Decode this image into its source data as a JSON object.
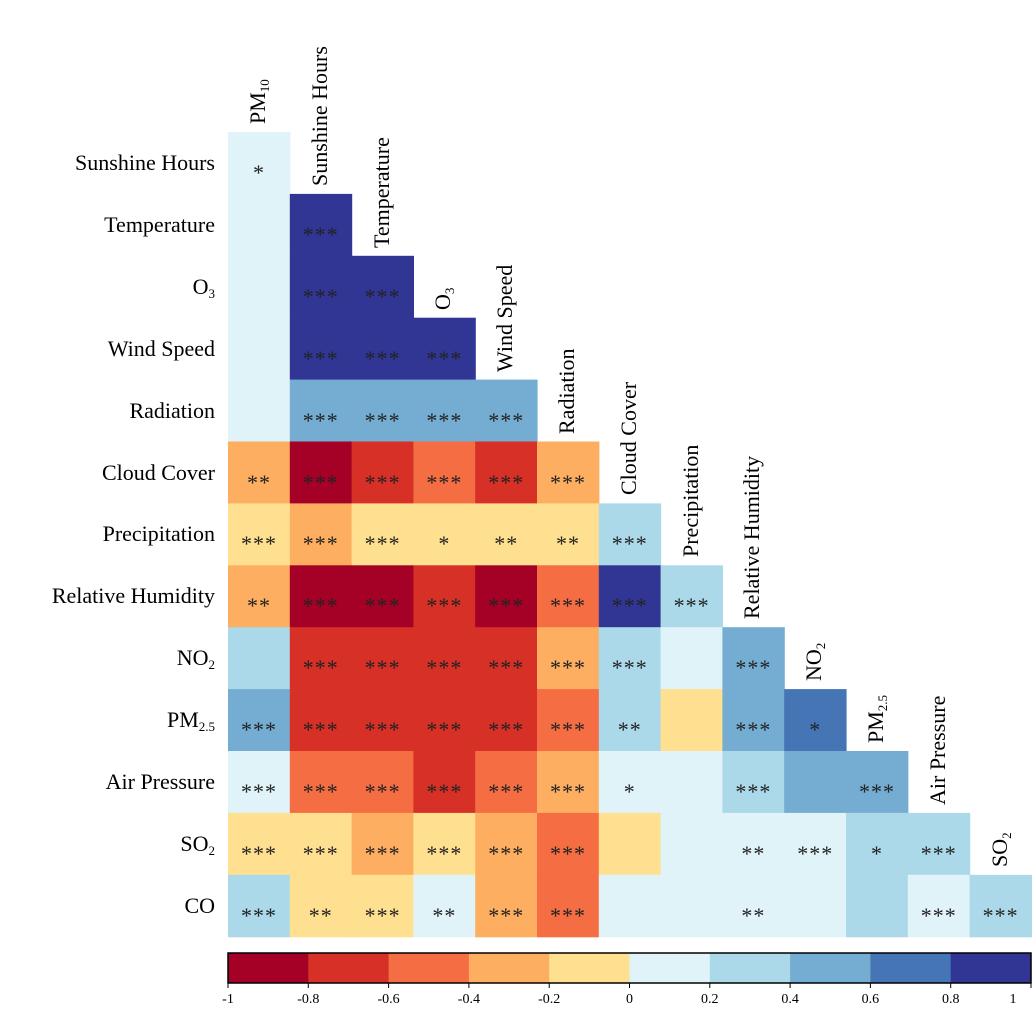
{
  "chart_data": {
    "type": "heatmap",
    "title": "",
    "rows": [
      "Sunshine Hours",
      "Temperature",
      "O3",
      "Wind Speed",
      "Radiation",
      "Cloud Cover",
      "Precipitation",
      "Relative Humidity",
      "NO2",
      "PM2.5",
      "Air Pressure",
      "SO2",
      "CO"
    ],
    "row_labels": [
      {
        "main": "Sunshine Hours",
        "sub": ""
      },
      {
        "main": "Temperature",
        "sub": ""
      },
      {
        "main": "O",
        "sub": "3"
      },
      {
        "main": "Wind Speed",
        "sub": ""
      },
      {
        "main": "Radiation",
        "sub": ""
      },
      {
        "main": "Cloud Cover",
        "sub": ""
      },
      {
        "main": "Precipitation",
        "sub": ""
      },
      {
        "main": "Relative Humidity",
        "sub": ""
      },
      {
        "main": "NO",
        "sub": "2"
      },
      {
        "main": "PM",
        "sub": "2.5"
      },
      {
        "main": "Air Pressure",
        "sub": ""
      },
      {
        "main": "SO",
        "sub": "2"
      },
      {
        "main": "CO",
        "sub": ""
      }
    ],
    "columns": [
      "PM10",
      "Sunshine Hours",
      "Temperature",
      "O3",
      "Wind Speed",
      "Radiation",
      "Cloud Cover",
      "Precipitation",
      "Relative Humidity",
      "NO2",
      "PM2.5",
      "Air Pressure",
      "SO2"
    ],
    "column_labels": [
      {
        "main": "PM",
        "sub": "10"
      },
      {
        "main": "Sunshine Hours",
        "sub": ""
      },
      {
        "main": "Temperature",
        "sub": ""
      },
      {
        "main": "O",
        "sub": "3"
      },
      {
        "main": "Wind Speed",
        "sub": ""
      },
      {
        "main": "Radiation",
        "sub": ""
      },
      {
        "main": "Cloud Cover",
        "sub": ""
      },
      {
        "main": "Precipitation",
        "sub": ""
      },
      {
        "main": "Relative Humidity",
        "sub": ""
      },
      {
        "main": "NO",
        "sub": "2"
      },
      {
        "main": "PM",
        "sub": "2.5"
      },
      {
        "main": "Air Pressure",
        "sub": ""
      },
      {
        "main": "SO",
        "sub": "2"
      }
    ],
    "values": [
      [
        0.1
      ],
      [
        0.1,
        0.9
      ],
      [
        0.1,
        0.9,
        0.9
      ],
      [
        0.1,
        0.9,
        0.9,
        0.9
      ],
      [
        0.1,
        0.5,
        0.5,
        0.5,
        0.5
      ],
      [
        -0.3,
        -0.9,
        -0.7,
        -0.5,
        -0.7,
        -0.3
      ],
      [
        -0.1,
        -0.3,
        -0.1,
        -0.1,
        -0.1,
        -0.1,
        0.3
      ],
      [
        -0.3,
        -0.9,
        -0.9,
        -0.7,
        -0.9,
        -0.5,
        0.9,
        0.3
      ],
      [
        0.3,
        -0.7,
        -0.7,
        -0.7,
        -0.7,
        -0.3,
        0.3,
        0.1,
        0.5
      ],
      [
        0.5,
        -0.7,
        -0.7,
        -0.7,
        -0.7,
        -0.5,
        0.3,
        -0.1,
        0.5,
        0.7
      ],
      [
        0.1,
        -0.5,
        -0.5,
        -0.7,
        -0.5,
        -0.3,
        0.1,
        0.1,
        0.3,
        0.5,
        0.5
      ],
      [
        -0.1,
        -0.1,
        -0.3,
        -0.1,
        -0.3,
        -0.5,
        -0.1,
        0.1,
        0.1,
        0.1,
        0.3,
        0.3
      ],
      [
        0.3,
        -0.1,
        -0.1,
        0.1,
        -0.3,
        -0.5,
        0.1,
        0.1,
        0.1,
        0.1,
        0.3,
        0.1,
        0.3
      ]
    ],
    "significance": [
      [
        "*"
      ],
      [
        "",
        "***"
      ],
      [
        "",
        "***",
        "***"
      ],
      [
        "",
        "***",
        "***",
        "***"
      ],
      [
        "",
        "***",
        "***",
        "***",
        "***"
      ],
      [
        "**",
        "***",
        "***",
        "***",
        "***",
        "***"
      ],
      [
        "***",
        "***",
        "***",
        "*",
        "**",
        "**",
        "***"
      ],
      [
        "**",
        "***",
        "***",
        "***",
        "***",
        "***",
        "***",
        "***"
      ],
      [
        "",
        "***",
        "***",
        "***",
        "***",
        "***",
        "***",
        "",
        "***"
      ],
      [
        "***",
        "***",
        "***",
        "***",
        "***",
        "***",
        "**",
        "",
        "***",
        "*"
      ],
      [
        "***",
        "***",
        "***",
        "***",
        "***",
        "***",
        "*",
        "",
        "***",
        "",
        "***"
      ],
      [
        "***",
        "***",
        "***",
        "***",
        "***",
        "***",
        "",
        "",
        "**",
        "***",
        "*",
        "***"
      ],
      [
        "***",
        "**",
        "***",
        "**",
        "***",
        "***",
        "",
        "",
        "**",
        "",
        "",
        "***",
        "***"
      ]
    ],
    "colorbar": {
      "ticks": [
        "-1",
        "-0.8",
        "-0.6",
        "-0.4",
        "-0.2",
        "0",
        "0.2",
        "0.4",
        "0.6",
        "0.8",
        "1"
      ],
      "range": [
        -1,
        1
      ],
      "colors": [
        "#a50026",
        "#d73027",
        "#f46d43",
        "#fdae61",
        "#fee090",
        "#e0f3f8",
        "#abd9e9",
        "#74add1",
        "#4575b4",
        "#313695"
      ]
    }
  }
}
